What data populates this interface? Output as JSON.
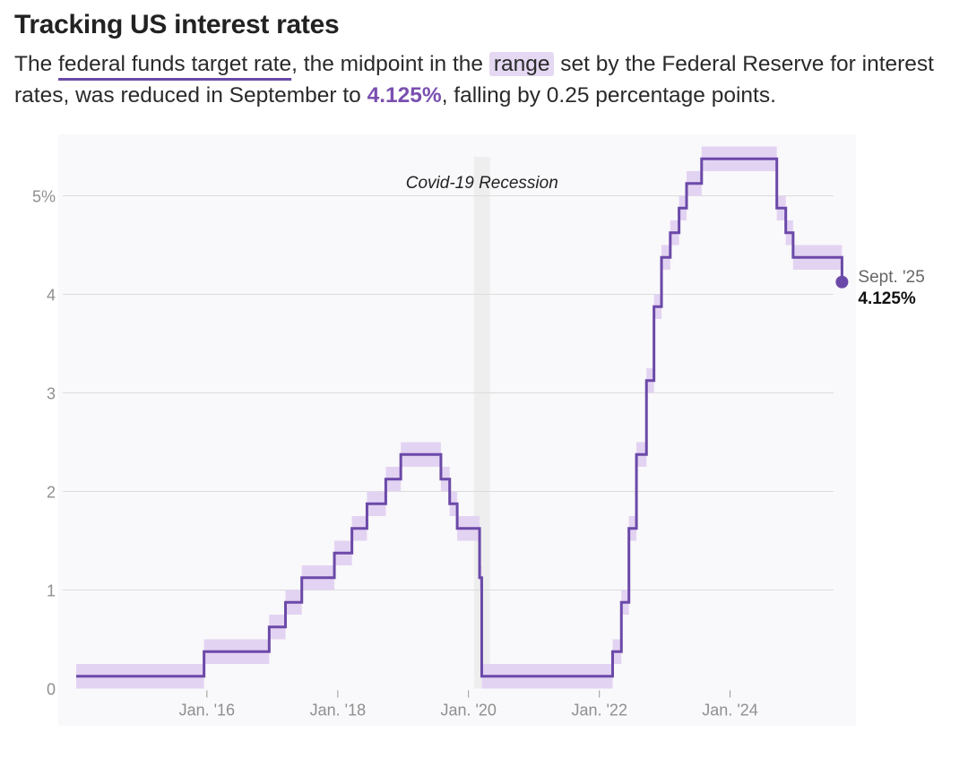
{
  "title": "Tracking US interest rates",
  "subtitle": {
    "p1": "The ",
    "link_text": "federal funds target rate",
    "p2": ", the midpoint in the ",
    "range_text": "range",
    "p3": " set by the Federal Reserve for interest rates, was reduced in September to ",
    "highlight_value": "4.125%",
    "p4": ", falling by 0.25 percentage points."
  },
  "colors": {
    "line": "#6b49a8",
    "band": "#e3d3f2",
    "plot_bg": "#f9f8fa",
    "recession": "#eeeeee",
    "grid": "#dcdcdc",
    "tick_text": "#8f8f8f"
  },
  "chart_data": {
    "type": "line",
    "step": true,
    "title": "",
    "xlabel": "",
    "ylabel": "",
    "x_range": [
      "2014-01-01",
      "2025-09-30"
    ],
    "ylim": [
      0,
      5.5
    ],
    "y_ticks": [
      0,
      1,
      2,
      3,
      4,
      5
    ],
    "y_tick_labels": [
      "0",
      "1",
      "2",
      "3",
      "4",
      "5%"
    ],
    "x_ticks": [
      "2016-01-01",
      "2018-01-01",
      "2020-01-01",
      "2022-01-01",
      "2024-01-01"
    ],
    "x_tick_labels": [
      "Jan. '16",
      "Jan. '18",
      "Jan. '20",
      "Jan. '22",
      "Jan. '24"
    ],
    "grid": true,
    "annotation": {
      "label": "Covid-19 Recession",
      "start": "2020-02-01",
      "end": "2020-04-30"
    },
    "end_label": {
      "date_label": "Sept. '25",
      "value_label": "4.125%"
    },
    "series": [
      {
        "name": "Federal funds target rate (midpoint)",
        "points": [
          {
            "date": "2014-01-01",
            "value": 0.125
          },
          {
            "date": "2015-12-16",
            "value": 0.375
          },
          {
            "date": "2016-12-14",
            "value": 0.625
          },
          {
            "date": "2017-03-15",
            "value": 0.875
          },
          {
            "date": "2017-06-14",
            "value": 1.125
          },
          {
            "date": "2017-12-13",
            "value": 1.375
          },
          {
            "date": "2018-03-21",
            "value": 1.625
          },
          {
            "date": "2018-06-13",
            "value": 1.875
          },
          {
            "date": "2018-09-26",
            "value": 2.125
          },
          {
            "date": "2018-12-19",
            "value": 2.375
          },
          {
            "date": "2019-07-31",
            "value": 2.125
          },
          {
            "date": "2019-09-18",
            "value": 1.875
          },
          {
            "date": "2019-10-30",
            "value": 1.625
          },
          {
            "date": "2020-03-03",
            "value": 1.125
          },
          {
            "date": "2020-03-15",
            "value": 0.125
          },
          {
            "date": "2022-03-16",
            "value": 0.375
          },
          {
            "date": "2022-05-04",
            "value": 0.875
          },
          {
            "date": "2022-06-15",
            "value": 1.625
          },
          {
            "date": "2022-07-27",
            "value": 2.375
          },
          {
            "date": "2022-09-21",
            "value": 3.125
          },
          {
            "date": "2022-11-02",
            "value": 3.875
          },
          {
            "date": "2022-12-14",
            "value": 4.375
          },
          {
            "date": "2023-02-01",
            "value": 4.625
          },
          {
            "date": "2023-03-22",
            "value": 4.875
          },
          {
            "date": "2023-05-03",
            "value": 5.125
          },
          {
            "date": "2023-07-26",
            "value": 5.375
          },
          {
            "date": "2024-09-18",
            "value": 4.875
          },
          {
            "date": "2024-11-07",
            "value": 4.625
          },
          {
            "date": "2024-12-18",
            "value": 4.375
          },
          {
            "date": "2025-09-17",
            "value": 4.125
          }
        ]
      }
    ]
  }
}
